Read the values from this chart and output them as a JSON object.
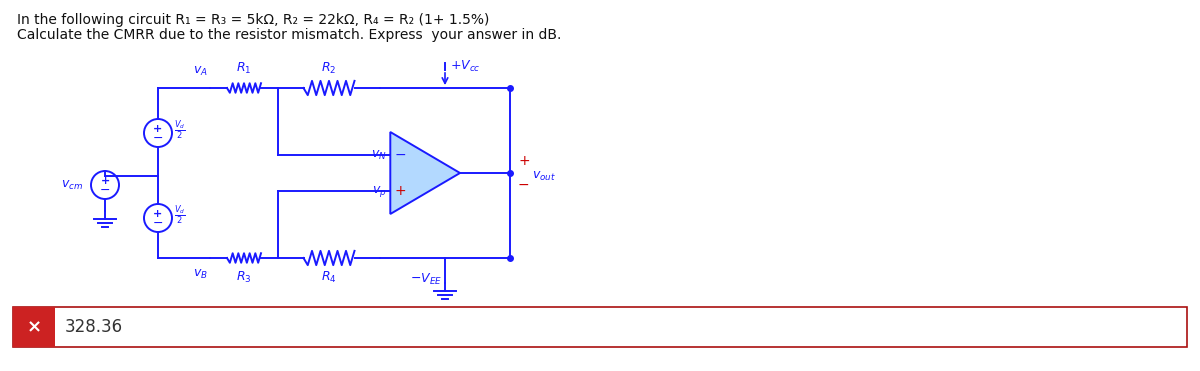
{
  "title_line1": "In the following circuit R₁ = R₃ = 5kΩ, R₂ = 22kΩ, R₄ = R₂ (1+ 1.5%)",
  "title_line2": "Calculate the CMRR due to the resistor mismatch. Express  your answer in dB.",
  "answer_value": "328.36",
  "bg_color": "#ffffff",
  "circuit_color": "#1a1aff",
  "red_color": "#cc0000",
  "answer_box_color": "#cc2222",
  "answer_text_color": "#333333",
  "title_color": "#111111",
  "opamp_fill": "#b3d9ff"
}
